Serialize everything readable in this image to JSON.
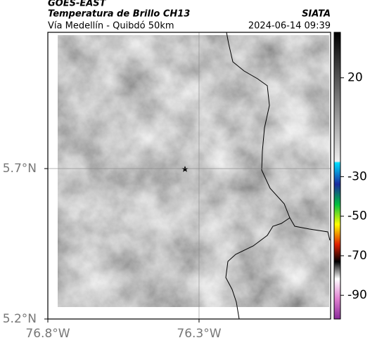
{
  "header": {
    "source": "GOES-EAST",
    "title": "Temperatura de Brillo CH13",
    "subtitle": "Vía Medellín - Quibdó 50km",
    "brand": "SIATA",
    "timestamp": "2024-06-14 09:39"
  },
  "map": {
    "xlim": [
      -76.8,
      -75.865
    ],
    "ylim": [
      5.2,
      6.153
    ],
    "xticks": [
      {
        "value": -76.8,
        "label": "76.8°W"
      },
      {
        "value": -76.3,
        "label": "76.3°W"
      }
    ],
    "yticks": [
      {
        "value": 5.2,
        "label": "5.2°N"
      },
      {
        "value": 5.7,
        "label": "5.7°N"
      }
    ],
    "grid": true
  },
  "colorbar": {
    "clim": [
      -102,
      43
    ],
    "ticks": [
      20,
      -30,
      -50,
      -70,
      -90
    ]
  }
}
